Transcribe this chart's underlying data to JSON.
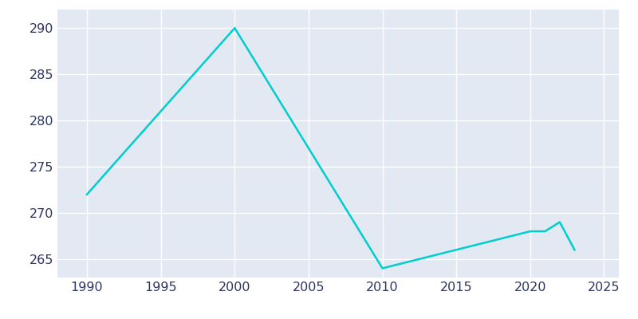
{
  "years": [
    1990,
    2000,
    2010,
    2020,
    2021,
    2022,
    2023
  ],
  "population": [
    272,
    290,
    264,
    268,
    268,
    269,
    266
  ],
  "line_color": "#00CDCD",
  "plot_bg_color": "#E3E9F2",
  "fig_bg_color": "#FFFFFF",
  "grid_color": "#FFFFFF",
  "tick_color": "#2D3561",
  "xlim": [
    1988,
    2026
  ],
  "ylim": [
    263,
    292
  ],
  "xticks": [
    1990,
    1995,
    2000,
    2005,
    2010,
    2015,
    2020,
    2025
  ],
  "yticks": [
    265,
    270,
    275,
    280,
    285,
    290
  ],
  "linewidth": 1.8,
  "tick_labelsize": 11.5
}
